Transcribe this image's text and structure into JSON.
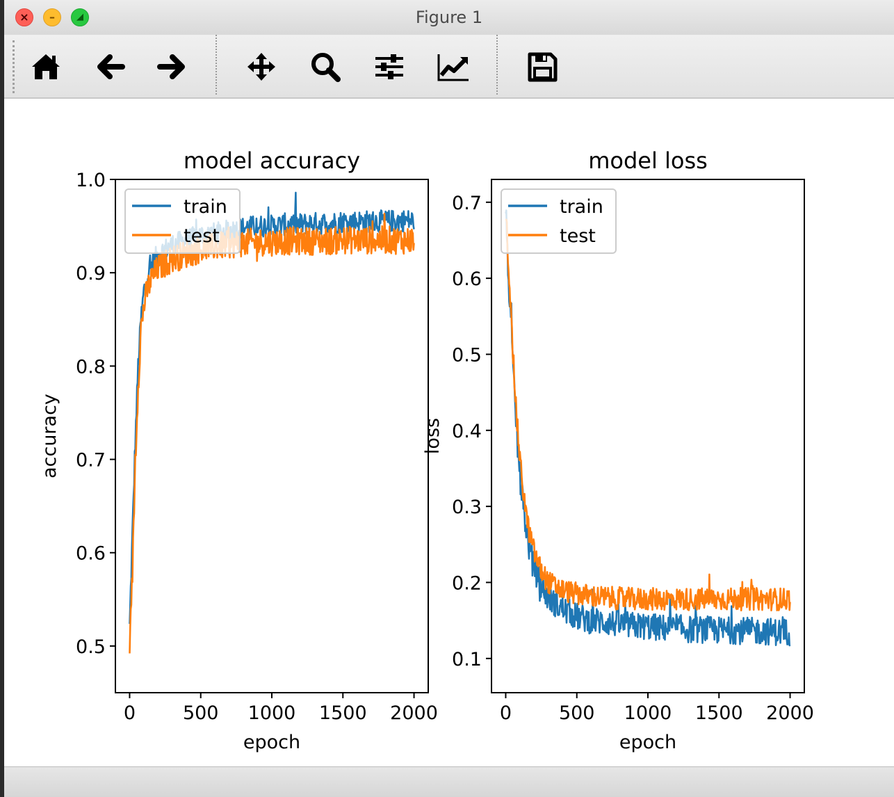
{
  "window": {
    "title": "Figure 1"
  },
  "toolbar": {
    "buttons": [
      {
        "name": "home",
        "icon": "home-icon"
      },
      {
        "name": "back",
        "icon": "arrow-left-icon"
      },
      {
        "name": "forward",
        "icon": "arrow-right-icon"
      },
      {
        "name": "pan",
        "icon": "move-icon"
      },
      {
        "name": "zoom",
        "icon": "search-icon"
      },
      {
        "name": "configure-subplots",
        "icon": "sliders-icon"
      },
      {
        "name": "edit-axis",
        "icon": "chart-line-icon"
      },
      {
        "name": "save",
        "icon": "save-icon"
      }
    ]
  },
  "colors": {
    "train": "#1f77b4",
    "test": "#ff7f0e"
  },
  "chart_data": [
    {
      "type": "line",
      "title": "model accuracy",
      "xlabel": "epoch",
      "ylabel": "accuracy",
      "xlim": [
        -100,
        2100
      ],
      "ylim": [
        0.45,
        1.0
      ],
      "xticks": [
        0,
        500,
        1000,
        1500,
        2000
      ],
      "yticks": [
        0.5,
        0.6,
        0.7,
        0.8,
        0.9,
        1.0
      ],
      "xtick_labels": [
        "0",
        "500",
        "1000",
        "1500",
        "2000"
      ],
      "ytick_labels": [
        "0.5",
        "0.6",
        "0.7",
        "0.8",
        "0.9",
        "1.0"
      ],
      "legend": "upper-left",
      "series": [
        {
          "name": "train",
          "color": "#1f77b4",
          "x": [
            0,
            20,
            40,
            60,
            80,
            100,
            130,
            160,
            200,
            250,
            300,
            400,
            500,
            600,
            700,
            800,
            900,
            1000,
            1100,
            1200,
            1300,
            1400,
            1500,
            1600,
            1700,
            1800,
            1900,
            2000
          ],
          "y": [
            0.52,
            0.62,
            0.72,
            0.8,
            0.85,
            0.88,
            0.9,
            0.91,
            0.92,
            0.925,
            0.93,
            0.935,
            0.94,
            0.942,
            0.945,
            0.948,
            0.95,
            0.95,
            0.952,
            0.952,
            0.953,
            0.953,
            0.955,
            0.955,
            0.955,
            0.955,
            0.956,
            0.956
          ],
          "noise": 0.012
        },
        {
          "name": "test",
          "color": "#ff7f0e",
          "x": [
            0,
            20,
            40,
            60,
            80,
            100,
            130,
            160,
            200,
            250,
            300,
            400,
            500,
            600,
            700,
            800,
            900,
            1000,
            1100,
            1200,
            1300,
            1400,
            1500,
            1600,
            1700,
            1800,
            1900,
            2000
          ],
          "y": [
            0.48,
            0.58,
            0.7,
            0.78,
            0.84,
            0.865,
            0.885,
            0.895,
            0.905,
            0.91,
            0.915,
            0.92,
            0.925,
            0.928,
            0.93,
            0.932,
            0.933,
            0.933,
            0.934,
            0.934,
            0.934,
            0.934,
            0.935,
            0.935,
            0.935,
            0.935,
            0.935,
            0.935
          ],
          "noise": 0.015
        }
      ]
    },
    {
      "type": "line",
      "title": "model loss",
      "xlabel": "epoch",
      "ylabel": "loss",
      "xlim": [
        -100,
        2100
      ],
      "ylim": [
        0.055,
        0.73
      ],
      "xticks": [
        0,
        500,
        1000,
        1500,
        2000
      ],
      "yticks": [
        0.1,
        0.2,
        0.3,
        0.4,
        0.5,
        0.6,
        0.7
      ],
      "xtick_labels": [
        "0",
        "500",
        "1000",
        "1500",
        "2000"
      ],
      "ytick_labels": [
        "0.1",
        "0.2",
        "0.3",
        "0.4",
        "0.5",
        "0.6",
        "0.7"
      ],
      "legend": "upper-left",
      "series": [
        {
          "name": "train",
          "color": "#1f77b4",
          "x": [
            0,
            20,
            40,
            60,
            80,
            100,
            130,
            160,
            200,
            250,
            300,
            400,
            500,
            600,
            700,
            800,
            900,
            1000,
            1100,
            1200,
            1300,
            1400,
            1500,
            1600,
            1700,
            1800,
            1900,
            2000
          ],
          "y": [
            0.69,
            0.6,
            0.52,
            0.45,
            0.39,
            0.34,
            0.29,
            0.25,
            0.22,
            0.195,
            0.18,
            0.165,
            0.155,
            0.15,
            0.148,
            0.145,
            0.143,
            0.142,
            0.14,
            0.14,
            0.138,
            0.138,
            0.137,
            0.137,
            0.136,
            0.136,
            0.135,
            0.135
          ],
          "noise": 0.018
        },
        {
          "name": "test",
          "color": "#ff7f0e",
          "x": [
            0,
            20,
            40,
            60,
            80,
            100,
            130,
            160,
            200,
            250,
            300,
            400,
            500,
            600,
            700,
            800,
            900,
            1000,
            1100,
            1200,
            1300,
            1400,
            1500,
            1600,
            1700,
            1800,
            1900,
            2000
          ],
          "y": [
            0.69,
            0.62,
            0.54,
            0.47,
            0.41,
            0.36,
            0.31,
            0.27,
            0.24,
            0.215,
            0.2,
            0.19,
            0.185,
            0.182,
            0.18,
            0.179,
            0.178,
            0.178,
            0.178,
            0.178,
            0.178,
            0.178,
            0.178,
            0.178,
            0.178,
            0.178,
            0.178,
            0.178
          ],
          "noise": 0.015
        }
      ]
    }
  ]
}
